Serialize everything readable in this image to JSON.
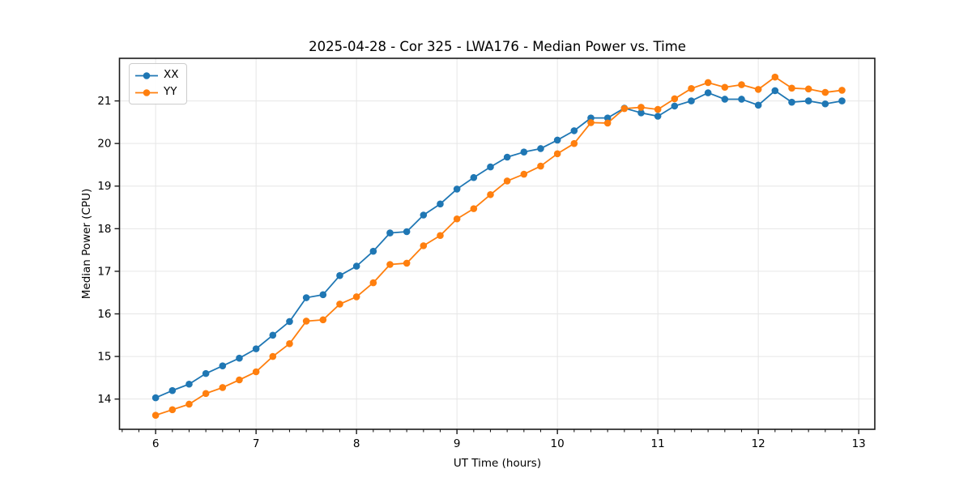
{
  "chart_data": {
    "type": "line",
    "title": "2025-04-28 - Cor 325 - LWA176 - Median Power vs. Time",
    "xlabel": "UT Time (hours)",
    "ylabel": "Median Power (CPU)",
    "xlim": [
      5.64,
      13.16
    ],
    "ylim": [
      13.29,
      22.0
    ],
    "x_ticks": [
      6,
      7,
      8,
      9,
      10,
      11,
      12,
      13
    ],
    "y_ticks": [
      14,
      15,
      16,
      17,
      18,
      19,
      20,
      21
    ],
    "x_minor_interval": 0.166667,
    "grid": true,
    "legend_position": "upper left",
    "x": [
      6.0,
      6.1667,
      6.3333,
      6.5,
      6.6667,
      6.8333,
      7.0,
      7.1667,
      7.3333,
      7.5,
      7.6667,
      7.8333,
      8.0,
      8.1667,
      8.3333,
      8.5,
      8.6667,
      8.8333,
      9.0,
      9.1667,
      9.3333,
      9.5,
      9.6667,
      9.8333,
      10.0,
      10.1667,
      10.3333,
      10.5,
      10.6667,
      10.8333,
      11.0,
      11.1667,
      11.3333,
      11.5,
      11.6667,
      11.8333,
      12.0,
      12.1667,
      12.3333,
      12.5,
      12.6667,
      12.8333
    ],
    "series": [
      {
        "name": "XX",
        "color": "#1f77b4",
        "values": [
          14.03,
          14.2,
          14.35,
          14.6,
          14.78,
          14.96,
          15.18,
          15.5,
          15.82,
          16.38,
          16.45,
          16.9,
          17.12,
          17.47,
          17.9,
          17.93,
          18.32,
          18.58,
          18.93,
          19.2,
          19.45,
          19.68,
          19.8,
          19.88,
          20.08,
          20.3,
          20.6,
          20.6,
          20.83,
          20.72,
          20.64,
          20.88,
          21.0,
          21.19,
          21.04,
          21.04,
          20.9,
          21.24,
          20.97,
          21.0,
          20.93,
          21.0
        ]
      },
      {
        "name": "YY",
        "color": "#ff7f0e",
        "values": [
          13.62,
          13.75,
          13.88,
          14.13,
          14.27,
          14.45,
          14.64,
          15.0,
          15.3,
          15.83,
          15.86,
          16.23,
          16.4,
          16.73,
          17.16,
          17.19,
          17.6,
          17.84,
          18.23,
          18.47,
          18.8,
          19.12,
          19.28,
          19.47,
          19.76,
          20.0,
          20.49,
          20.48,
          20.82,
          20.85,
          20.8,
          21.05,
          21.29,
          21.43,
          21.32,
          21.38,
          21.27,
          21.56,
          21.3,
          21.28,
          21.2,
          21.25
        ]
      }
    ]
  },
  "style": {
    "grid_color": "#e6e6e6",
    "spine_color": "#1a1a1a",
    "tick_color": "#1a1a1a",
    "text_color": "#000000",
    "background": "#ffffff"
  }
}
